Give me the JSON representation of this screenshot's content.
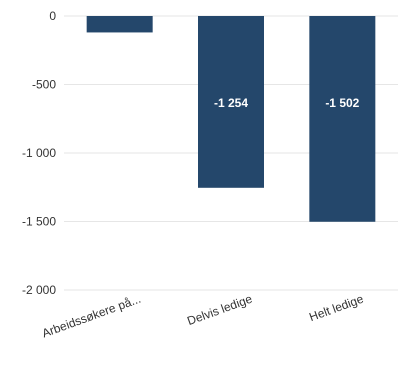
{
  "chart_data": {
    "type": "bar",
    "categories": [
      "Arbeidssøkere på...",
      "Delvis ledige",
      "Helt ledige"
    ],
    "values": [
      -120,
      -1254,
      -1502
    ],
    "data_labels": [
      "",
      "-1 254",
      "-1 502"
    ],
    "y_ticks": [
      {
        "value": 0,
        "label": "0"
      },
      {
        "value": -500,
        "label": "-500"
      },
      {
        "value": -1000,
        "label": "-1 000"
      },
      {
        "value": -1500,
        "label": "-1 500"
      },
      {
        "value": -2000,
        "label": "-2 000"
      }
    ],
    "ylim": [
      -2000,
      0
    ],
    "grid": true,
    "bar_color": "#24476b",
    "title": "",
    "xlabel": "",
    "ylabel": ""
  }
}
